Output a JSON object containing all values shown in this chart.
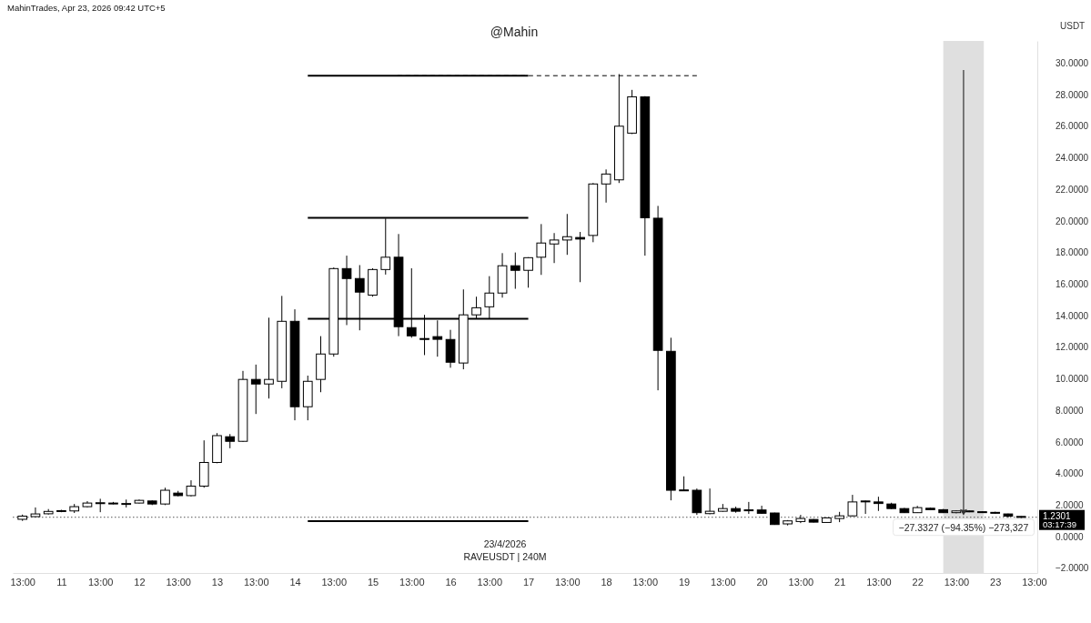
{
  "chart_data": {
    "type": "candlestick",
    "title": "@Mahin",
    "ylabel": "USDT",
    "annotations": [
      "MahinTrades, Apr 23, 2026 09:42 UTC+5",
      "23/4/2026",
      "RAVEUSDT | 240M",
      "03:17:39",
      "−27.3327 (−94.35%) −273,327"
    ],
    "x": [
      "2026-04-10T13:00",
      "2026-04-10T17:00",
      "2026-04-10T21:00",
      "2026-04-11T01:00",
      "2026-04-11T05:00",
      "2026-04-11T09:00",
      "2026-04-11T13:00",
      "2026-04-11T17:00",
      "2026-04-11T21:00",
      "2026-04-12T01:00",
      "2026-04-12T05:00",
      "2026-04-12T09:00",
      "2026-04-12T13:00",
      "2026-04-12T17:00",
      "2026-04-12T21:00",
      "2026-04-13T01:00",
      "2026-04-13T05:00",
      "2026-04-13T09:00",
      "2026-04-13T13:00",
      "2026-04-13T17:00",
      "2026-04-13T21:00",
      "2026-04-14T01:00",
      "2026-04-14T05:00",
      "2026-04-14T09:00",
      "2026-04-14T13:00",
      "2026-04-14T17:00",
      "2026-04-14T21:00",
      "2026-04-15T01:00",
      "2026-04-15T05:00",
      "2026-04-15T09:00",
      "2026-04-15T13:00",
      "2026-04-15T17:00",
      "2026-04-15T21:00",
      "2026-04-16T01:00",
      "2026-04-16T05:00",
      "2026-04-16T09:00",
      "2026-04-16T13:00",
      "2026-04-16T17:00",
      "2026-04-16T21:00",
      "2026-04-17T01:00",
      "2026-04-17T05:00",
      "2026-04-17T09:00",
      "2026-04-17T13:00",
      "2026-04-17T17:00",
      "2026-04-17T21:00",
      "2026-04-18T01:00",
      "2026-04-18T05:00",
      "2026-04-18T09:00",
      "2026-04-18T13:00",
      "2026-04-18T17:00",
      "2026-04-18T21:00",
      "2026-04-19T01:00",
      "2026-04-19T05:00",
      "2026-04-19T09:00",
      "2026-04-19T13:00",
      "2026-04-19T17:00",
      "2026-04-19T21:00",
      "2026-04-20T01:00",
      "2026-04-20T05:00",
      "2026-04-20T09:00",
      "2026-04-20T13:00",
      "2026-04-20T17:00",
      "2026-04-20T21:00",
      "2026-04-21T01:00",
      "2026-04-21T05:00",
      "2026-04-21T09:00",
      "2026-04-21T13:00",
      "2026-04-21T17:00",
      "2026-04-21T21:00",
      "2026-04-22T01:00",
      "2026-04-22T05:00",
      "2026-04-22T09:00",
      "2026-04-22T13:00",
      "2026-04-22T17:00",
      "2026-04-22T21:00",
      "2026-04-23T01:00",
      "2026-04-23T05:00",
      "2026-04-23T09:00"
    ],
    "ohlc": [
      [
        1.1,
        1.4,
        1.0,
        1.3
      ],
      [
        1.27,
        1.85,
        1.25,
        1.44
      ],
      [
        1.45,
        1.75,
        1.4,
        1.6
      ],
      [
        1.6,
        1.7,
        1.55,
        1.65
      ],
      [
        1.63,
        2.07,
        1.5,
        1.9
      ],
      [
        1.9,
        2.25,
        1.85,
        2.13
      ],
      [
        2.1,
        2.4,
        1.55,
        2.15
      ],
      [
        2.13,
        2.2,
        2.05,
        2.1
      ],
      [
        2.05,
        2.35,
        1.85,
        2.1
      ],
      [
        2.13,
        2.35,
        2.1,
        2.3
      ],
      [
        2.26,
        2.3,
        2.0,
        2.07
      ],
      [
        2.07,
        3.1,
        2.0,
        2.94
      ],
      [
        2.76,
        2.9,
        2.55,
        2.6
      ],
      [
        2.6,
        3.57,
        2.55,
        3.2
      ],
      [
        3.2,
        6.1,
        3.1,
        4.7
      ],
      [
        4.7,
        6.56,
        4.65,
        6.4
      ],
      [
        6.33,
        6.5,
        5.6,
        6.04
      ],
      [
        6.04,
        10.5,
        6.0,
        9.96
      ],
      [
        9.96,
        10.9,
        7.77,
        9.67
      ],
      [
        9.67,
        13.87,
        8.75,
        9.96
      ],
      [
        9.84,
        15.25,
        9.4,
        13.64
      ],
      [
        13.64,
        14.4,
        7.37,
        8.23
      ],
      [
        8.23,
        10.2,
        7.37,
        9.84
      ],
      [
        9.96,
        12.7,
        9.15,
        11.57
      ],
      [
        11.57,
        17.05,
        11.4,
        16.98
      ],
      [
        16.98,
        17.8,
        13.4,
        16.35
      ],
      [
        16.35,
        17.2,
        13.07,
        15.49
      ],
      [
        15.3,
        17.0,
        15.2,
        16.92
      ],
      [
        16.92,
        20.15,
        16.6,
        17.7
      ],
      [
        17.7,
        19.17,
        12.7,
        13.3
      ],
      [
        13.24,
        17.0,
        12.6,
        12.72
      ],
      [
        12.55,
        14.05,
        11.5,
        12.5
      ],
      [
        12.67,
        13.7,
        11.4,
        12.5
      ],
      [
        12.49,
        13.1,
        10.7,
        11.05
      ],
      [
        11.0,
        15.66,
        10.6,
        14.05
      ],
      [
        14.05,
        15.2,
        13.8,
        14.5
      ],
      [
        14.56,
        16.5,
        13.8,
        15.43
      ],
      [
        15.43,
        17.96,
        15.14,
        17.16
      ],
      [
        17.16,
        18.0,
        15.7,
        16.87
      ],
      [
        16.87,
        17.7,
        15.77,
        17.67
      ],
      [
        17.7,
        19.8,
        16.58,
        18.6
      ],
      [
        18.54,
        19.23,
        17.33,
        18.79
      ],
      [
        18.79,
        20.44,
        17.85,
        19.0
      ],
      [
        18.95,
        19.3,
        16.12,
        18.85
      ],
      [
        19.08,
        22.4,
        18.65,
        22.34
      ],
      [
        22.34,
        23.26,
        21.16,
        22.97
      ],
      [
        22.6,
        29.3,
        22.4,
        26.0
      ],
      [
        25.56,
        28.3,
        25.5,
        27.86
      ],
      [
        27.86,
        27.9,
        17.8,
        20.2
      ],
      [
        20.17,
        20.95,
        9.27,
        11.8
      ],
      [
        11.74,
        12.6,
        2.3,
        2.94
      ],
      [
        2.96,
        3.82,
        2.9,
        2.92
      ],
      [
        2.94,
        3.05,
        1.38,
        1.52
      ],
      [
        1.46,
        3.05,
        1.42,
        1.61
      ],
      [
        1.61,
        2.07,
        1.58,
        1.78
      ],
      [
        1.78,
        1.9,
        1.52,
        1.61
      ],
      [
        1.64,
        2.2,
        1.44,
        1.7
      ],
      [
        1.69,
        1.96,
        1.44,
        1.48
      ],
      [
        1.5,
        1.52,
        0.75,
        0.77
      ],
      [
        0.81,
        1.05,
        0.71,
        1.0
      ],
      [
        0.96,
        1.38,
        0.86,
        1.15
      ],
      [
        1.09,
        1.12,
        0.9,
        0.92
      ],
      [
        0.9,
        1.22,
        0.88,
        1.19
      ],
      [
        1.15,
        1.57,
        0.92,
        1.32
      ],
      [
        1.32,
        2.65,
        1.28,
        2.2
      ],
      [
        2.26,
        2.28,
        1.44,
        2.24
      ],
      [
        2.2,
        2.53,
        1.63,
        2.1
      ],
      [
        2.07,
        2.15,
        1.75,
        1.78
      ],
      [
        1.78,
        1.82,
        1.5,
        1.52
      ],
      [
        1.52,
        1.95,
        1.5,
        1.84
      ],
      [
        1.8,
        1.84,
        1.69,
        1.71
      ],
      [
        1.71,
        1.75,
        1.5,
        1.52
      ],
      [
        1.52,
        1.66,
        1.48,
        1.63
      ],
      [
        1.63,
        1.66,
        1.55,
        1.6
      ],
      [
        1.58,
        1.6,
        1.5,
        1.55
      ],
      [
        1.54,
        1.58,
        1.45,
        1.5
      ],
      [
        1.44,
        1.46,
        1.2,
        1.3
      ],
      [
        1.28,
        1.3,
        1.18,
        1.2301
      ]
    ],
    "series": [
      {
        "type": "line",
        "color": "#000000",
        "x": [
          "2026-04-14T05:00",
          "2026-04-17T01:00"
        ],
        "values": [
          29.2,
          29.2
        ]
      },
      {
        "type": "line",
        "color": "#000000",
        "line_style": "dashed",
        "x": [
          "2026-04-15T08:00",
          "2026-04-19T05:00"
        ],
        "values": [
          29.2,
          29.2
        ]
      },
      {
        "type": "line",
        "color": "#000000",
        "x": [
          "2026-04-14T05:00",
          "2026-04-17T01:00"
        ],
        "values": [
          20.2,
          20.2
        ]
      },
      {
        "type": "line",
        "color": "#000000",
        "x": [
          "2026-04-14T05:00",
          "2026-04-17T01:00"
        ],
        "values": [
          13.8,
          13.8
        ]
      },
      {
        "type": "line",
        "color": "#000000",
        "x": [
          "2026-04-14T05:00",
          "2026-04-17T01:00"
        ],
        "values": [
          0.98,
          0.98
        ]
      }
    ],
    "ref_lines": [
      {
        "axis": "y",
        "value": 1.2301,
        "label": "1.2301",
        "color": "#555555",
        "line_style": "dotted"
      }
    ],
    "bands": [
      {
        "axis": "x",
        "from": "2026-04-22T09:00",
        "to": "2026-04-22T21:30",
        "color": "#d9d9d9"
      }
    ],
    "xlim": [
      "2026-04-10T10:00",
      "2026-04-23T14:00"
    ],
    "xticks": [
      {
        "value": "2026-04-10T13:00",
        "label": "13:00"
      },
      {
        "value": "2026-04-11T01:00",
        "label": "11"
      },
      {
        "value": "2026-04-11T13:00",
        "label": "13:00"
      },
      {
        "value": "2026-04-12T01:00",
        "label": "12"
      },
      {
        "value": "2026-04-12T13:00",
        "label": "13:00"
      },
      {
        "value": "2026-04-13T01:00",
        "label": "13"
      },
      {
        "value": "2026-04-13T13:00",
        "label": "13:00"
      },
      {
        "value": "2026-04-14T01:00",
        "label": "14"
      },
      {
        "value": "2026-04-14T13:00",
        "label": "13:00"
      },
      {
        "value": "2026-04-15T01:00",
        "label": "15"
      },
      {
        "value": "2026-04-15T13:00",
        "label": "13:00"
      },
      {
        "value": "2026-04-16T01:00",
        "label": "16"
      },
      {
        "value": "2026-04-16T13:00",
        "label": "13:00"
      },
      {
        "value": "2026-04-17T01:00",
        "label": "17"
      },
      {
        "value": "2026-04-17T13:00",
        "label": "13:00"
      },
      {
        "value": "2026-04-18T01:00",
        "label": "18"
      },
      {
        "value": "2026-04-18T13:00",
        "label": "13:00"
      },
      {
        "value": "2026-04-19T01:00",
        "label": "19"
      },
      {
        "value": "2026-04-19T13:00",
        "label": "13:00"
      },
      {
        "value": "2026-04-20T01:00",
        "label": "20"
      },
      {
        "value": "2026-04-20T13:00",
        "label": "13:00"
      },
      {
        "value": "2026-04-21T01:00",
        "label": "21"
      },
      {
        "value": "2026-04-21T13:00",
        "label": "13:00"
      },
      {
        "value": "2026-04-22T01:00",
        "label": "22"
      },
      {
        "value": "2026-04-22T13:00",
        "label": "13:00"
      },
      {
        "value": "2026-04-23T01:00",
        "label": "23"
      },
      {
        "value": "2026-04-23T13:00",
        "label": "13:00"
      }
    ],
    "ylim": [
      -2.3,
      31.4
    ],
    "yticks": [
      {
        "value": -2,
        "label": "−2.0000"
      },
      {
        "value": 0,
        "label": "0.0000"
      },
      {
        "value": 2,
        "label": "2.0000"
      },
      {
        "value": 4,
        "label": "4.0000"
      },
      {
        "value": 6,
        "label": "6.0000"
      },
      {
        "value": 8,
        "label": "8.0000"
      },
      {
        "value": 10,
        "label": "10.0000"
      },
      {
        "value": 12,
        "label": "12.0000"
      },
      {
        "value": 14,
        "label": "14.0000"
      },
      {
        "value": 16,
        "label": "16.0000"
      },
      {
        "value": 18,
        "label": "18.0000"
      },
      {
        "value": 20,
        "label": "20.0000"
      },
      {
        "value": 22,
        "label": "22.0000"
      },
      {
        "value": 24,
        "label": "24.0000"
      },
      {
        "value": 26,
        "label": "26.0000"
      },
      {
        "value": 28,
        "label": "28.0000"
      },
      {
        "value": 30,
        "label": "30.0000"
      }
    ]
  }
}
